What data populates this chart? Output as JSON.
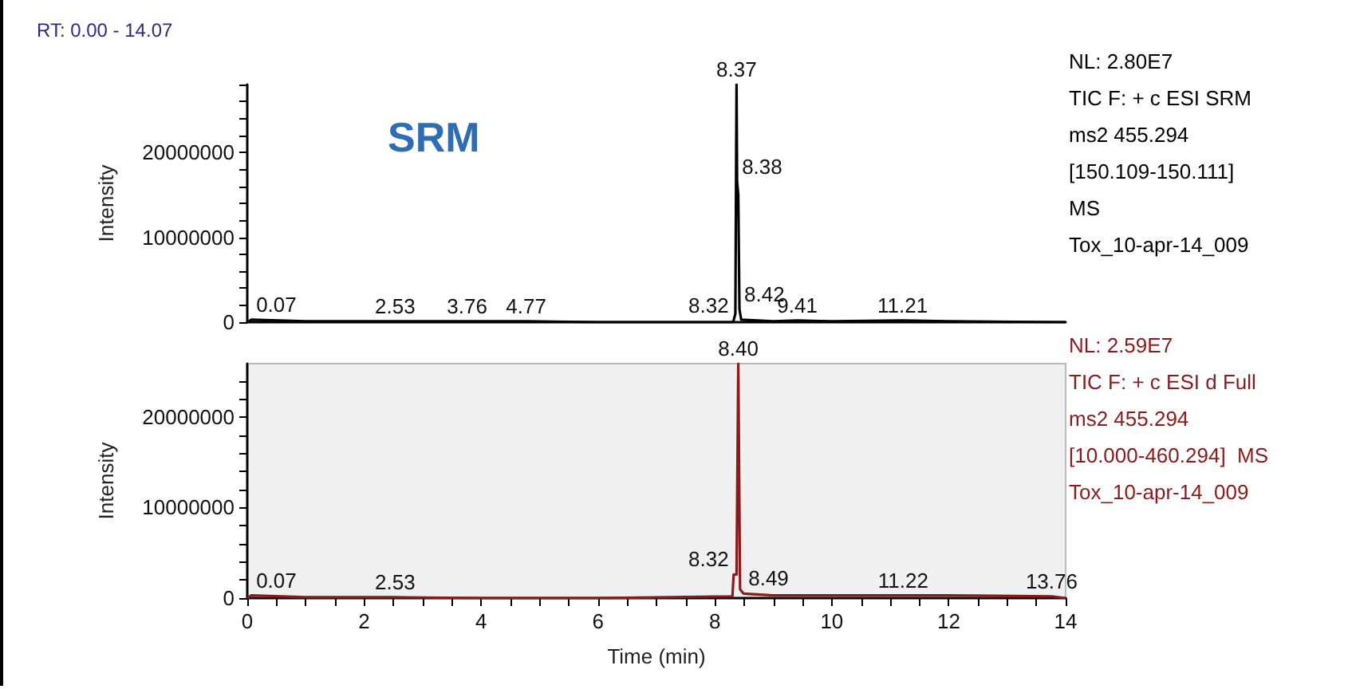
{
  "chart_data": [
    {
      "type": "line",
      "title": "RT: 0.00 - 14.07",
      "subtitle": "SRM",
      "ylabel": "Intensity",
      "xlim": [
        0,
        14
      ],
      "ylim": [
        0,
        28000000
      ],
      "yticks": [
        0,
        {
          "value": 2000000,
          "label": null
        },
        {
          "value": 4000000,
          "label": null
        },
        {
          "value": 6000000,
          "label": null
        },
        {
          "value": 8000000,
          "label": null
        },
        10000000,
        {
          "value": 12000000,
          "label": null
        },
        {
          "value": 14000000,
          "label": null
        },
        {
          "value": 16000000,
          "label": null
        },
        {
          "value": 18000000,
          "label": null
        },
        20000000,
        {
          "value": 22000000,
          "label": null
        },
        {
          "value": 24000000,
          "label": null
        },
        {
          "value": 26000000,
          "label": null
        },
        {
          "value": 28000000,
          "label": null
        }
      ],
      "tick_labels": "y",
      "series": [
        {
          "color": "#000000",
          "x": [
            0,
            0.07,
            1,
            2.53,
            3.76,
            4.77,
            6,
            8.3,
            8.32,
            8.35,
            8.37,
            8.38,
            8.4,
            8.42,
            8.45,
            9,
            9.41,
            10,
            11.21,
            12,
            14
          ],
          "values": [
            0,
            300000,
            100000,
            100000,
            100000,
            100000,
            0,
            0,
            200000,
            1000000,
            28000000,
            16500000,
            15000000,
            1500000,
            300000,
            100000,
            200000,
            100000,
            200000,
            100000,
            0
          ]
        }
      ],
      "annotations": [
        {
          "text": "0.07",
          "x": 0.07,
          "y": 300000
        },
        {
          "text": "2.53",
          "x": 2.53,
          "y": 100000
        },
        {
          "text": "3.76",
          "x": 3.76,
          "y": 100000
        },
        {
          "text": "4.77",
          "x": 4.77,
          "y": 100000
        },
        {
          "text": "8.32",
          "x": 8.32,
          "y": 200000
        },
        {
          "text": "8.37",
          "x": 8.37,
          "y": 28000000
        },
        {
          "text": "8.38",
          "x": 8.38,
          "y": 16500000
        },
        {
          "text": "8.42",
          "x": 8.42,
          "y": 1500000
        },
        {
          "text": "9.41",
          "x": 9.41,
          "y": 200000
        },
        {
          "text": "11.21",
          "x": 11.21,
          "y": 200000
        },
        "NL: 2.80E7",
        "TIC F: + c ESI SRM",
        "ms2 455.294",
        "[150.109-150.111]",
        "MS",
        "Tox_10-apr-14_009"
      ]
    },
    {
      "type": "line",
      "xlabel": "Time (min)",
      "ylabel": "Intensity",
      "xlim": [
        0,
        14
      ],
      "ylim": [
        0,
        25900000
      ],
      "xticks": [
        0,
        {
          "value": 0.5,
          "label": null
        },
        {
          "value": 1,
          "label": null
        },
        {
          "value": 1.5,
          "label": null
        },
        2,
        {
          "value": 2.5,
          "label": null
        },
        {
          "value": 3,
          "label": null
        },
        {
          "value": 3.5,
          "label": null
        },
        4,
        {
          "value": 4.5,
          "label": null
        },
        {
          "value": 5,
          "label": null
        },
        {
          "value": 5.5,
          "label": null
        },
        6,
        {
          "value": 6.5,
          "label": null
        },
        {
          "value": 7,
          "label": null
        },
        {
          "value": 7.5,
          "label": null
        },
        8,
        {
          "value": 8.5,
          "label": null
        },
        {
          "value": 9,
          "label": null
        },
        {
          "value": 9.5,
          "label": null
        },
        10,
        {
          "value": 10.5,
          "label": null
        },
        {
          "value": 11,
          "label": null
        },
        {
          "value": 11.5,
          "label": null
        },
        12,
        {
          "value": 12.5,
          "label": null
        },
        {
          "value": 13,
          "label": null
        },
        {
          "value": 13.5,
          "label": null
        },
        14
      ],
      "yticks": [
        0,
        {
          "value": 2000000,
          "label": null
        },
        {
          "value": 4000000,
          "label": null
        },
        {
          "value": 6000000,
          "label": null
        },
        {
          "value": 8000000,
          "label": null
        },
        10000000,
        {
          "value": 12000000,
          "label": null
        },
        {
          "value": 14000000,
          "label": null
        },
        {
          "value": 16000000,
          "label": null
        },
        {
          "value": 18000000,
          "label": null
        },
        20000000,
        {
          "value": 22000000,
          "label": null
        },
        {
          "value": 24000000,
          "label": null
        }
      ],
      "series": [
        {
          "color": "#8b1a1a",
          "x": [
            0,
            0.07,
            1,
            2.53,
            4,
            6,
            8.3,
            8.32,
            8.35,
            8.37,
            8.4,
            8.43,
            8.45,
            8.49,
            9,
            10,
            11.22,
            12,
            13.76,
            14
          ],
          "values": [
            0,
            300000,
            100000,
            100000,
            0,
            0,
            200000,
            2600000,
            2600000,
            2600000,
            25900000,
            1000000,
            800000,
            500000,
            300000,
            300000,
            300000,
            300000,
            200000,
            0
          ]
        }
      ],
      "annotations": [
        {
          "text": "0.07",
          "x": 0.07,
          "y": 300000
        },
        {
          "text": "2.53",
          "x": 2.53,
          "y": 100000
        },
        {
          "text": "8.32",
          "x": 8.32,
          "y": 2600000
        },
        {
          "text": "8.40",
          "x": 8.4,
          "y": 25900000
        },
        {
          "text": "8.49",
          "x": 8.49,
          "y": 500000
        },
        {
          "text": "11.22",
          "x": 11.22,
          "y": 300000
        },
        {
          "text": "13.76",
          "x": 13.76,
          "y": 200000
        },
        "NL: 2.59E7",
        "TIC F: + c ESI d Full",
        "ms2 455.294",
        "[10.000-460.294]  MS",
        "Tox_10-apr-14_009"
      ]
    }
  ]
}
